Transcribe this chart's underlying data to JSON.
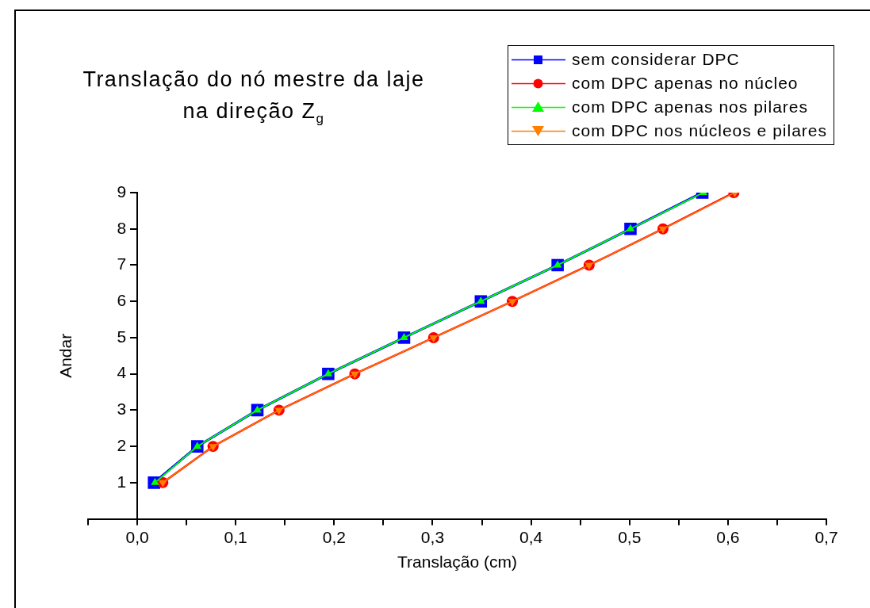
{
  "chart_data": {
    "type": "line",
    "title": "Translação do nó mestre da laje na direção  Z$_{g}$",
    "xlabel": "Translação (cm)",
    "ylabel": "Andar",
    "xlim": [
      -0.05,
      0.7
    ],
    "xticks": [
      {
        "value": -0.05,
        "label": null
      },
      {
        "value": 0,
        "label": "0,0"
      },
      {
        "value": 0.05,
        "label": null
      },
      {
        "value": 0.1,
        "label": "0,1"
      },
      {
        "value": 0.15,
        "label": null
      },
      {
        "value": 0.2,
        "label": "0,2"
      },
      {
        "value": 0.25,
        "label": null
      },
      {
        "value": 0.3,
        "label": "0,3"
      },
      {
        "value": 0.35,
        "label": null
      },
      {
        "value": 0.4,
        "label": "0,4"
      },
      {
        "value": 0.45,
        "label": null
      },
      {
        "value": 0.5,
        "label": "0,5"
      },
      {
        "value": 0.55,
        "label": null
      },
      {
        "value": 0.6,
        "label": "0,6"
      },
      {
        "value": 0.65,
        "label": null
      },
      {
        "value": 0.7,
        "label": "0,7"
      }
    ],
    "ylim": [
      0,
      9
    ],
    "yticks": [
      1,
      2,
      3,
      4,
      5,
      6,
      7,
      8,
      9
    ],
    "grid": false,
    "legend": "top right",
    "line_style": "solid",
    "series": [
      {
        "name": "sem considerar DPC",
        "color": "#0000ff",
        "marker": "square",
        "x": [
          0.017,
          0.061,
          0.122,
          0.194,
          0.271,
          0.349,
          0.427,
          0.501,
          0.574
        ],
        "values": [
          1,
          2,
          3,
          4,
          5,
          6,
          7,
          8,
          9
        ]
      },
      {
        "name": "com DPC apenas no núcleo",
        "color": "#ff0000",
        "marker": "circle",
        "x": [
          0.026,
          0.077,
          0.144,
          0.221,
          0.301,
          0.381,
          0.459,
          0.534,
          0.606
        ],
        "values": [
          1,
          2,
          3,
          4,
          5,
          6,
          7,
          8,
          9
        ]
      },
      {
        "name": "com DPC apenas nos pilares",
        "color": "#00ff00",
        "marker": "triangle",
        "x": [
          0.018,
          0.061,
          0.122,
          0.194,
          0.271,
          0.349,
          0.427,
          0.501,
          0.575
        ],
        "values": [
          1,
          2,
          3,
          4,
          5,
          6,
          7,
          8,
          9
        ]
      },
      {
        "name": "com DPC nos núcleos e pilares",
        "color": "#ff8000",
        "marker": "triangle-down",
        "x": [
          0.026,
          0.077,
          0.144,
          0.221,
          0.301,
          0.381,
          0.459,
          0.534,
          0.607
        ],
        "values": [
          1,
          2,
          3,
          4,
          5,
          6,
          7,
          8,
          9
        ]
      }
    ]
  }
}
